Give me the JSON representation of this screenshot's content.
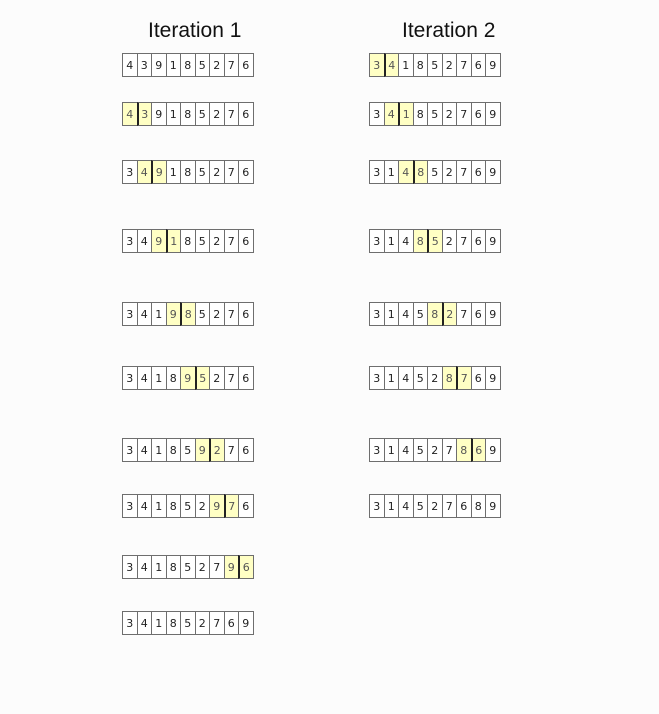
{
  "iterations": [
    {
      "title": "Iteration 1",
      "steps": [
        {
          "values": [
            "4",
            "3",
            "9",
            "1",
            "8",
            "5",
            "2",
            "7",
            "6"
          ],
          "highlight": []
        },
        {
          "values": [
            "4",
            "3",
            "9",
            "1",
            "8",
            "5",
            "2",
            "7",
            "6"
          ],
          "highlight": [
            0,
            1
          ]
        },
        {
          "values": [
            "3",
            "4",
            "9",
            "1",
            "8",
            "5",
            "2",
            "7",
            "6"
          ],
          "highlight": [
            1,
            2
          ]
        },
        {
          "values": [
            "3",
            "4",
            "9",
            "1",
            "8",
            "5",
            "2",
            "7",
            "6"
          ],
          "highlight": [
            2,
            3
          ]
        },
        {
          "values": [
            "3",
            "4",
            "1",
            "9",
            "8",
            "5",
            "2",
            "7",
            "6"
          ],
          "highlight": [
            3,
            4
          ]
        },
        {
          "values": [
            "3",
            "4",
            "1",
            "8",
            "9",
            "5",
            "2",
            "7",
            "6"
          ],
          "highlight": [
            4,
            5
          ]
        },
        {
          "values": [
            "3",
            "4",
            "1",
            "8",
            "5",
            "9",
            "2",
            "7",
            "6"
          ],
          "highlight": [
            5,
            6
          ]
        },
        {
          "values": [
            "3",
            "4",
            "1",
            "8",
            "5",
            "2",
            "9",
            "7",
            "6"
          ],
          "highlight": [
            6,
            7
          ]
        },
        {
          "values": [
            "3",
            "4",
            "1",
            "8",
            "5",
            "2",
            "7",
            "9",
            "6"
          ],
          "highlight": [
            7,
            8
          ]
        },
        {
          "values": [
            "3",
            "4",
            "1",
            "8",
            "5",
            "2",
            "7",
            "6",
            "9"
          ],
          "highlight": []
        }
      ]
    },
    {
      "title": "Iteration 2",
      "steps": [
        {
          "values": [
            "3",
            "4",
            "1",
            "8",
            "5",
            "2",
            "7",
            "6",
            "9"
          ],
          "highlight": [
            0,
            1
          ]
        },
        {
          "values": [
            "3",
            "4",
            "1",
            "8",
            "5",
            "2",
            "7",
            "6",
            "9"
          ],
          "highlight": [
            1,
            2
          ]
        },
        {
          "values": [
            "3",
            "1",
            "4",
            "8",
            "5",
            "2",
            "7",
            "6",
            "9"
          ],
          "highlight": [
            2,
            3
          ]
        },
        {
          "values": [
            "3",
            "1",
            "4",
            "8",
            "5",
            "2",
            "7",
            "6",
            "9"
          ],
          "highlight": [
            3,
            4
          ]
        },
        {
          "values": [
            "3",
            "1",
            "4",
            "5",
            "8",
            "2",
            "7",
            "6",
            "9"
          ],
          "highlight": [
            4,
            5
          ]
        },
        {
          "values": [
            "3",
            "1",
            "4",
            "5",
            "2",
            "8",
            "7",
            "6",
            "9"
          ],
          "highlight": [
            5,
            6
          ]
        },
        {
          "values": [
            "3",
            "1",
            "4",
            "5",
            "2",
            "7",
            "8",
            "6",
            "9"
          ],
          "highlight": [
            6,
            7
          ]
        },
        {
          "values": [
            "3",
            "1",
            "4",
            "5",
            "2",
            "7",
            "6",
            "8",
            "9"
          ],
          "highlight": []
        }
      ]
    }
  ],
  "colors": {
    "highlight": "#ffffc4",
    "border": "#6e6e6e",
    "background": "#fcfcfc"
  }
}
